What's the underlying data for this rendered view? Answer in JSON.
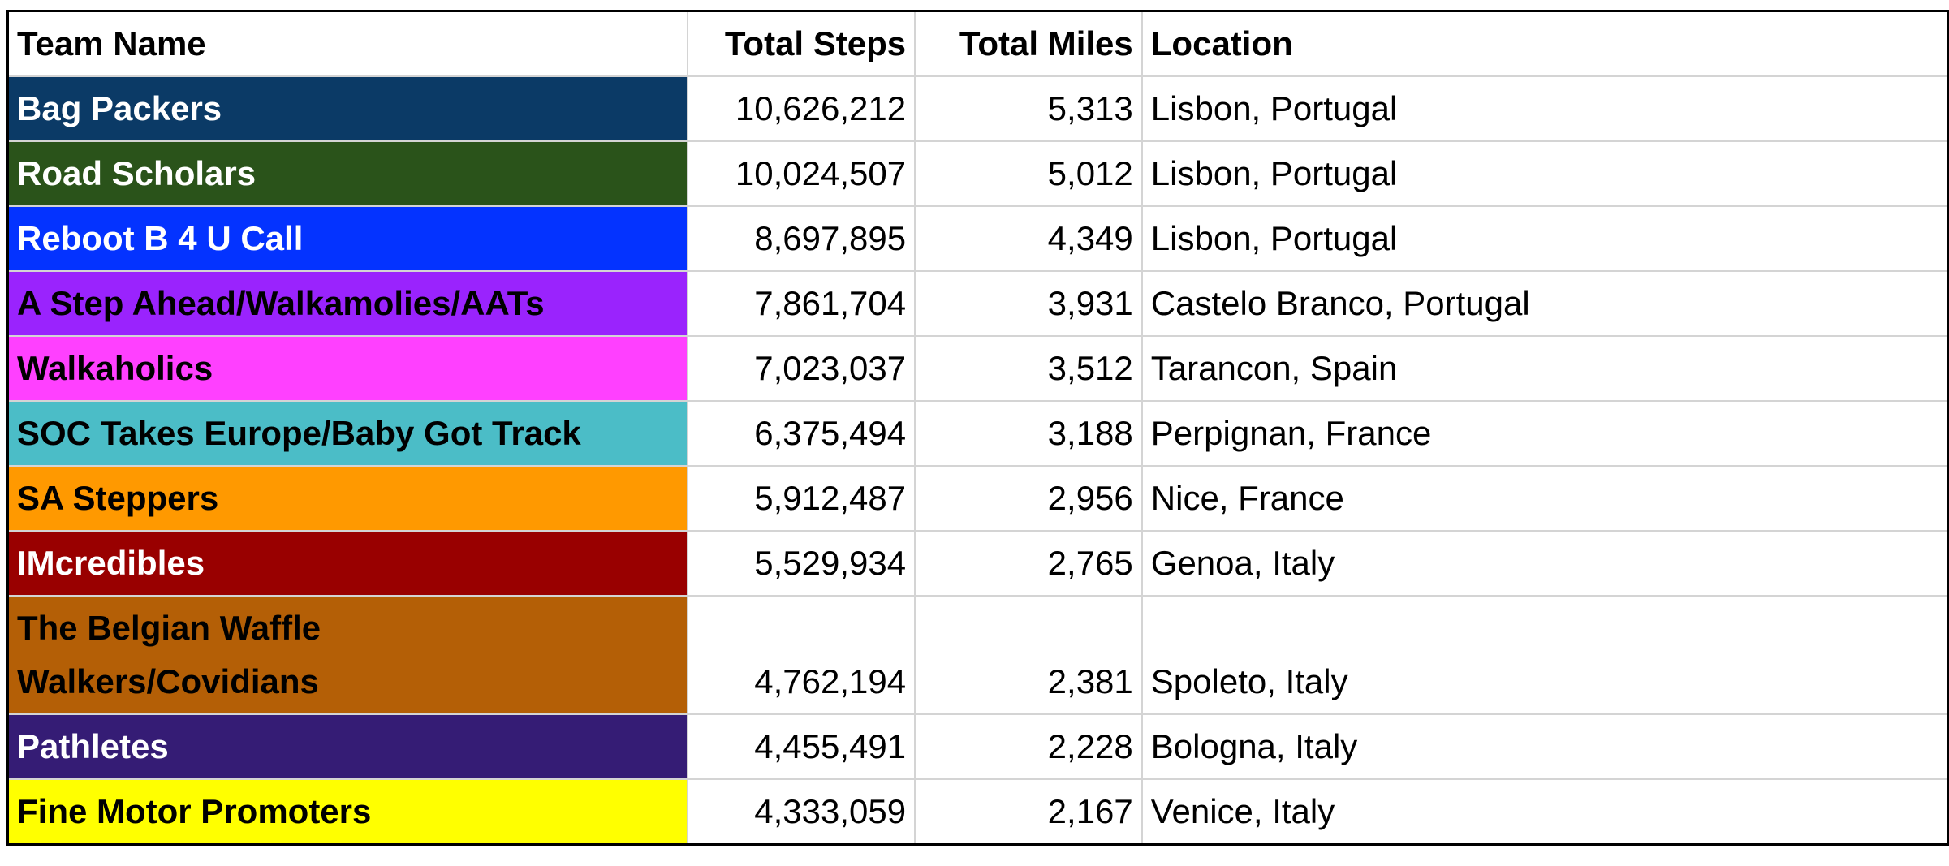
{
  "table": {
    "header": [
      "Team Name",
      "Total Steps",
      "Total Miles",
      "Location"
    ],
    "rows": [
      {
        "cells": [
          "Bag Packers",
          "10,626,212",
          "5,313",
          "Lisbon, Portugal"
        ],
        "fill": "#0b3a66",
        "text_color": "#ffffff"
      },
      {
        "cells": [
          "Road Scholars",
          "10,024,507",
          "5,012",
          "Lisbon, Portugal"
        ],
        "fill": "#2a531a",
        "text_color": "#ffffff"
      },
      {
        "cells": [
          "Reboot B 4 U Call",
          "8,697,895",
          "4,349",
          "Lisbon, Portugal"
        ],
        "fill": "#0433ff",
        "text_color": "#ffffff"
      },
      {
        "cells": [
          "A Step Ahead/Walkamolies/AATs",
          "7,861,704",
          "3,931",
          "Castelo Branco, Portugal"
        ],
        "fill": "#9a23fd",
        "text_color": "#000000"
      },
      {
        "cells": [
          "Walkaholics",
          "7,023,037",
          "3,512",
          "Tarancon, Spain"
        ],
        "fill": "#ff40ff",
        "text_color": "#000000"
      },
      {
        "cells": [
          "SOC Takes Europe/Baby Got Track",
          "6,375,494",
          "3,188",
          "Perpignan, France"
        ],
        "fill": "#4bbdc7",
        "text_color": "#000000"
      },
      {
        "cells": [
          "SA Steppers",
          "5,912,487",
          "2,956",
          "Nice, France"
        ],
        "fill": "#ff9900",
        "text_color": "#000000"
      },
      {
        "cells": [
          "IMcredibles",
          "5,529,934",
          "2,765",
          "Genoa, Italy"
        ],
        "fill": "#990000",
        "text_color": "#ffffff"
      },
      {
        "cells": [
          "The Belgian Waffle\nWalkers/Covidians",
          "4,762,194",
          "2,381",
          "Spoleto, Italy"
        ],
        "fill": "#b45f06",
        "text_color": "#000000"
      },
      {
        "cells": [
          "Pathletes",
          "4,455,491",
          "2,228",
          "Bologna, Italy"
        ],
        "fill": "#351c75",
        "text_color": "#ffffff"
      },
      {
        "cells": [
          "Fine Motor Promoters",
          "4,333,059",
          "2,167",
          "Venice, Italy"
        ],
        "fill": "#ffff00",
        "text_color": "#000000"
      }
    ]
  }
}
